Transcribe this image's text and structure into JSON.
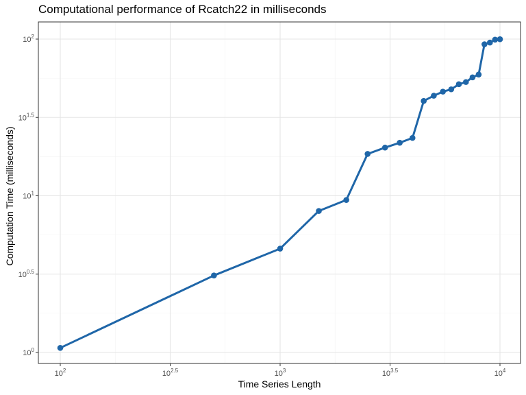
{
  "chart_data": {
    "type": "line",
    "title": "Computational performance of Rcatch22 in milliseconds",
    "xlabel": "Time Series Length",
    "ylabel": "Computation Time (milliseconds)",
    "x_scale": "log10",
    "y_scale": "log10",
    "xlim": [
      100,
      10000
    ],
    "ylim": [
      1,
      100
    ],
    "x_ticks": [
      {
        "value": 100,
        "base": "10",
        "exp": "2"
      },
      {
        "value": 316.23,
        "base": "10",
        "exp": "2.5"
      },
      {
        "value": 1000,
        "base": "10",
        "exp": "3"
      },
      {
        "value": 3162.3,
        "base": "10",
        "exp": "3.5"
      },
      {
        "value": 10000,
        "base": "10",
        "exp": "4"
      }
    ],
    "y_ticks": [
      {
        "value": 1,
        "base": "10",
        "exp": "0"
      },
      {
        "value": 3.162,
        "base": "10",
        "exp": "0.5"
      },
      {
        "value": 10,
        "base": "10",
        "exp": "1"
      },
      {
        "value": 31.62,
        "base": "10",
        "exp": "1.5"
      },
      {
        "value": 100,
        "base": "10",
        "exp": "2"
      }
    ],
    "grid": true,
    "series": [
      {
        "color": "#1f66a8",
        "points": [
          {
            "x": 100,
            "y": 1.07
          },
          {
            "x": 500,
            "y": 3.1
          },
          {
            "x": 1000,
            "y": 4.6
          },
          {
            "x": 1500,
            "y": 8.0
          },
          {
            "x": 2000,
            "y": 9.4
          },
          {
            "x": 2500,
            "y": 18.5
          },
          {
            "x": 3000,
            "y": 20.3
          },
          {
            "x": 3500,
            "y": 21.8
          },
          {
            "x": 4000,
            "y": 23.4
          },
          {
            "x": 4500,
            "y": 40.3
          },
          {
            "x": 5000,
            "y": 43.5
          },
          {
            "x": 5500,
            "y": 46.2
          },
          {
            "x": 6000,
            "y": 47.8
          },
          {
            "x": 6500,
            "y": 51.5
          },
          {
            "x": 7000,
            "y": 53.2
          },
          {
            "x": 7500,
            "y": 57.0
          },
          {
            "x": 8000,
            "y": 59.4
          },
          {
            "x": 8500,
            "y": 92.7
          },
          {
            "x": 9000,
            "y": 95.0
          },
          {
            "x": 9500,
            "y": 99.2
          },
          {
            "x": 10000,
            "y": 99.8
          }
        ]
      }
    ]
  }
}
